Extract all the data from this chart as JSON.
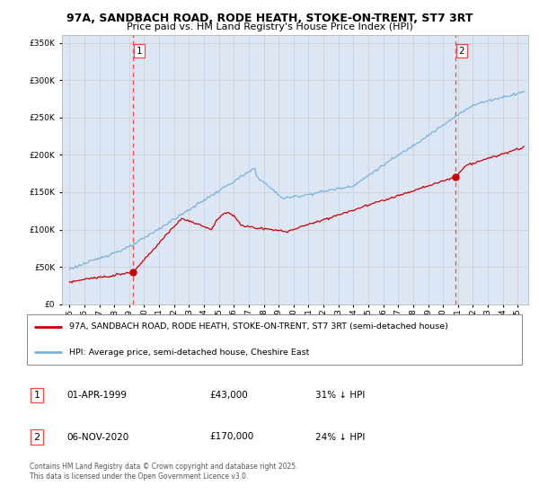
{
  "title": "97A, SANDBACH ROAD, RODE HEATH, STOKE-ON-TRENT, ST7 3RT",
  "subtitle": "Price paid vs. HM Land Registry's House Price Index (HPI)",
  "background_color": "#dce6f5",
  "plot_bg_color": "#dce6f5",
  "hpi_color": "#7ab3d8",
  "price_color": "#cc0000",
  "vline_color": "#ff4444",
  "legend1": "97A, SANDBACH ROAD, RODE HEATH, STOKE-ON-TRENT, ST7 3RT (semi-detached house)",
  "legend2": "HPI: Average price, semi-detached house, Cheshire East",
  "footer": "Contains HM Land Registry data © Crown copyright and database right 2025.\nThis data is licensed under the Open Government Licence v3.0.",
  "ylim": [
    0,
    360000
  ],
  "yticks": [
    0,
    50000,
    100000,
    150000,
    200000,
    250000,
    300000,
    350000
  ],
  "marker1_year": 1999.25,
  "marker1_price": 43000,
  "marker2_year": 2020.833,
  "marker2_price": 170000,
  "marker1_date": "01-APR-1999",
  "marker2_date": "06-NOV-2020",
  "marker1_pct": "31% ↓ HPI",
  "marker2_pct": "24% ↓ HPI",
  "marker1_val": "£43,000",
  "marker2_val": "£170,000"
}
